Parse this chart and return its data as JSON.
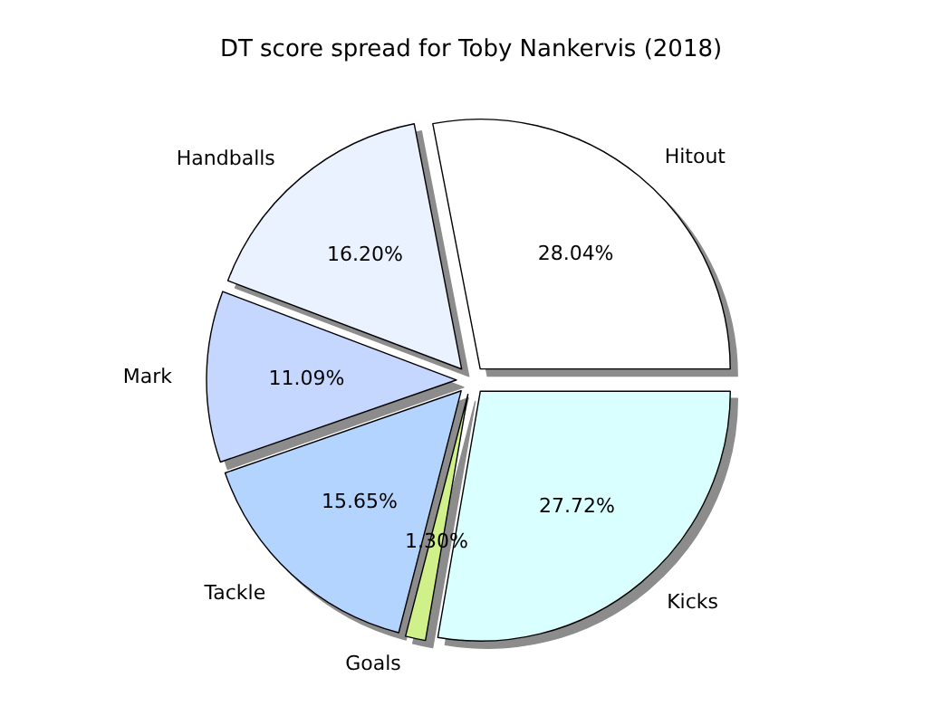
{
  "chart_data": {
    "type": "pie",
    "title": "DT score spread for Toby Nankervis (2018)",
    "categories": [
      "Hitout",
      "Handballs",
      "Mark",
      "Tackle",
      "Goals",
      "Kicks"
    ],
    "values": [
      28.04,
      16.2,
      11.09,
      15.65,
      1.3,
      27.72
    ],
    "value_labels": [
      "28.04%",
      "16.20%",
      "11.09%",
      "15.65%",
      "1.30%",
      "27.72%"
    ],
    "colors": [
      "#ffffff",
      "#eaf1ff",
      "#c6d7ff",
      "#b3d4ff",
      "#d0f08a",
      "#d9ffff"
    ],
    "legend": false
  }
}
